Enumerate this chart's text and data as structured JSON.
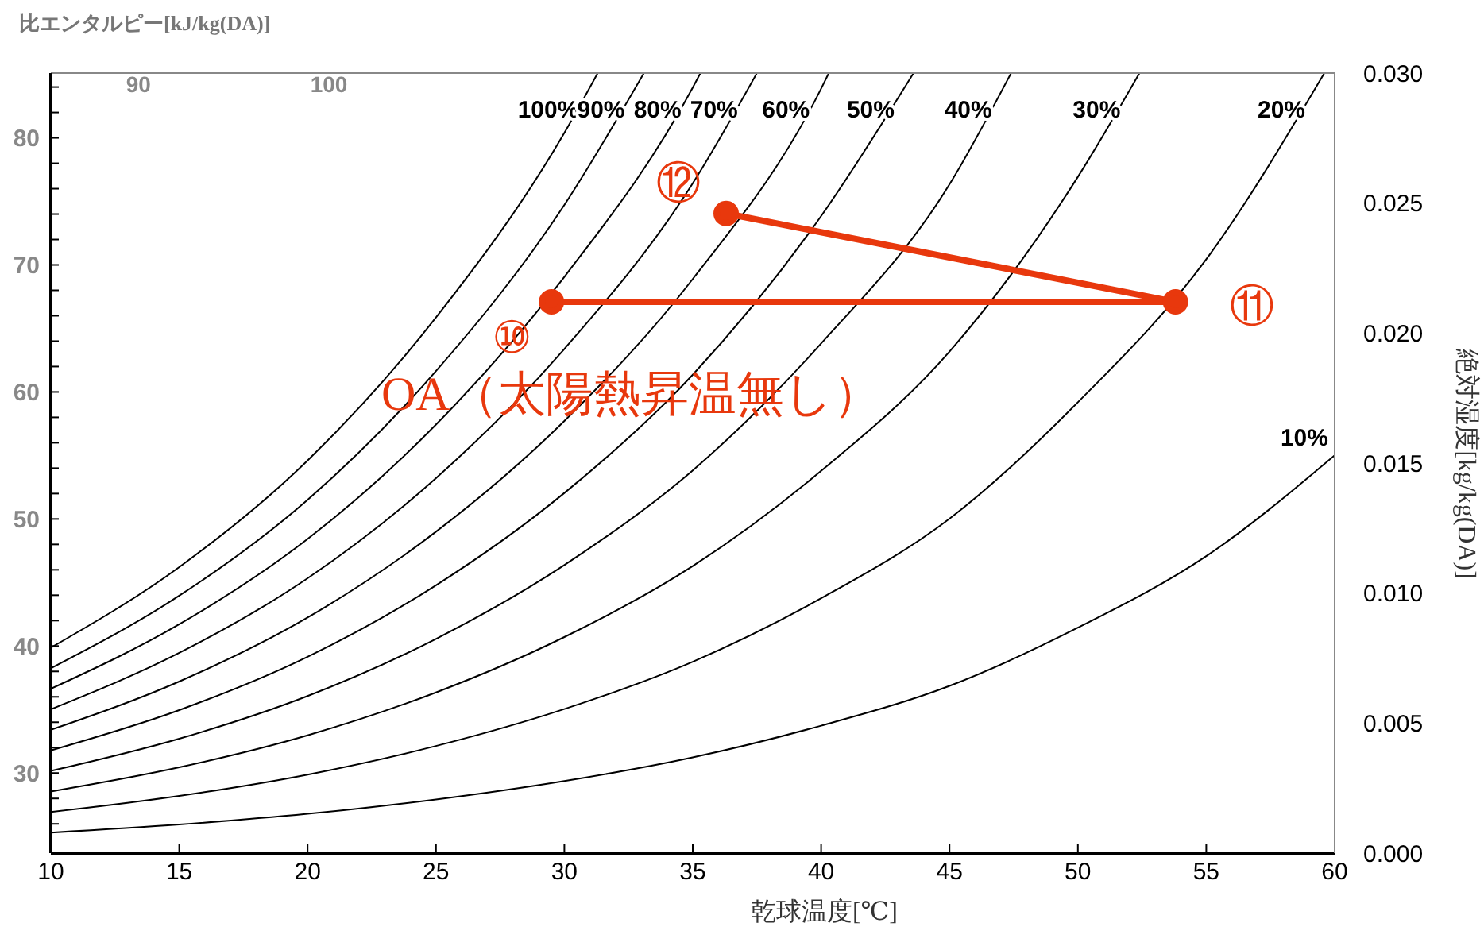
{
  "chart_data": {
    "type": "line",
    "xlabel": "乾球温度[℃]",
    "ylabel": "比エンタルピー[kJ/kg(DA)]",
    "y2label": "絶対湿度[kg/kg(DA)]",
    "xlim": [
      10,
      60
    ],
    "xticks": [
      10,
      15,
      20,
      25,
      30,
      35,
      40,
      45,
      50,
      55,
      60
    ],
    "x2lim": [
      85.4,
      152.8
    ],
    "x2ticks": [
      90,
      100
    ],
    "ylim": [
      23.7,
      85.1
    ],
    "yticks": [
      {
        "value": 26,
        "label": null
      },
      {
        "value": 28,
        "label": null
      },
      30,
      {
        "value": 32,
        "label": null
      },
      {
        "value": 34,
        "label": null
      },
      {
        "value": 36,
        "label": null
      },
      {
        "value": 38,
        "label": null
      },
      40,
      {
        "value": 42,
        "label": null
      },
      {
        "value": 44,
        "label": null
      },
      {
        "value": 46,
        "label": null
      },
      {
        "value": 48,
        "label": null
      },
      50,
      {
        "value": 52,
        "label": null
      },
      {
        "value": 54,
        "label": null
      },
      {
        "value": 56,
        "label": null
      },
      {
        "value": 58,
        "label": null
      },
      60,
      {
        "value": 62,
        "label": null
      },
      {
        "value": 64,
        "label": null
      },
      {
        "value": 66,
        "label": null
      },
      {
        "value": 68,
        "label": null
      },
      70,
      {
        "value": 72,
        "label": null
      },
      {
        "value": 74,
        "label": null
      },
      {
        "value": 76,
        "label": null
      },
      {
        "value": 78,
        "label": null
      },
      80,
      {
        "value": 82,
        "label": null
      },
      {
        "value": 84,
        "label": null
      }
    ],
    "y2lim": [
      0,
      0.03
    ],
    "y2ticks": [
      {
        "value": 0,
        "label": "0.000"
      },
      {
        "value": 0.005,
        "label": "0.005"
      },
      {
        "value": 0.01,
        "label": "0.010"
      },
      {
        "value": 0.015,
        "label": "0.015"
      },
      {
        "value": 0.02,
        "label": "0.020"
      },
      {
        "value": 0.025,
        "label": "0.025"
      },
      {
        "value": 0.03,
        "label": "0.030"
      }
    ],
    "series": [
      {
        "name": "100%",
        "color": "#000000",
        "axis": "y2",
        "marker": "none",
        "x": [
          10,
          15,
          20,
          25,
          30,
          31.3
        ],
        "values": [
          0.0079,
          0.011,
          0.0151,
          0.0206,
          0.0277,
          0.03
        ]
      },
      {
        "name": "90%",
        "color": "#000000",
        "axis": "y2",
        "marker": "none",
        "x": [
          10,
          15,
          20,
          25,
          30,
          33.1
        ],
        "values": [
          0.00711,
          0.0099,
          0.01359,
          0.01854,
          0.02493,
          0.03
        ]
      },
      {
        "name": "80%",
        "color": "#000000",
        "axis": "y2",
        "marker": "none",
        "x": [
          10,
          15,
          20,
          25,
          30,
          35,
          35.3
        ],
        "values": [
          0.00632,
          0.0088,
          0.01208,
          0.01648,
          0.02216,
          0.02944,
          0.03
        ]
      },
      {
        "name": "70%",
        "color": "#000000",
        "axis": "y2",
        "marker": "none",
        "x": [
          10,
          15,
          20,
          25,
          30,
          35,
          37.5
        ],
        "values": [
          0.00553,
          0.0077,
          0.01057,
          0.01442,
          0.01939,
          0.02576,
          0.03
        ]
      },
      {
        "name": "60%",
        "color": "#000000",
        "axis": "y2",
        "marker": "none",
        "x": [
          10,
          15,
          20,
          25,
          30,
          35,
          40,
          40.3
        ],
        "values": [
          0.00474,
          0.0066,
          0.00906,
          0.01236,
          0.01662,
          0.02208,
          0.0294,
          0.03
        ]
      },
      {
        "name": "50%",
        "color": "#000000",
        "axis": "y2",
        "marker": "none",
        "x": [
          10,
          15,
          20,
          25,
          30,
          35,
          40,
          43.6
        ],
        "values": [
          0.00395,
          0.0055,
          0.00755,
          0.0103,
          0.01385,
          0.0184,
          0.0245,
          0.03
        ]
      },
      {
        "name": "40%",
        "color": "#000000",
        "axis": "y2",
        "marker": "none",
        "x": [
          10,
          15,
          20,
          25,
          30,
          35,
          40,
          45,
          47.4
        ],
        "values": [
          0.00316,
          0.0044,
          0.00604,
          0.00824,
          0.01108,
          0.01472,
          0.0196,
          0.02572,
          0.03
        ]
      },
      {
        "name": "30%",
        "color": "#000000",
        "axis": "y2",
        "marker": "none",
        "x": [
          10,
          15,
          20,
          25,
          30,
          35,
          40,
          45,
          50,
          52.4
        ],
        "values": [
          0.00237,
          0.0033,
          0.00453,
          0.00618,
          0.00831,
          0.01104,
          0.0147,
          0.01929,
          0.02601,
          0.03
        ]
      },
      {
        "name": "20%",
        "color": "#000000",
        "axis": "y2",
        "marker": "none",
        "x": [
          10,
          15,
          20,
          25,
          30,
          35,
          40,
          45,
          50,
          55,
          59.6
        ],
        "values": [
          0.00158,
          0.0022,
          0.00302,
          0.00412,
          0.00554,
          0.00736,
          0.0098,
          0.01286,
          0.01734,
          0.02284,
          0.03
        ]
      },
      {
        "name": "10%",
        "color": "#000000",
        "axis": "y2",
        "marker": "none",
        "x": [
          10,
          15,
          20,
          25,
          30,
          35,
          40,
          45,
          50,
          55,
          60
        ],
        "values": [
          0.00079,
          0.0011,
          0.00151,
          0.00206,
          0.00277,
          0.00368,
          0.0049,
          0.00643,
          0.00867,
          0.01142,
          0.0153
        ]
      },
      {
        "name": "OA（太陽熱昇温無し）",
        "color": "#e8380d",
        "axis": "y2",
        "marker": "circle",
        "x": [
          29.5,
          53.8,
          36.3
        ],
        "values": [
          0.0212,
          0.0212,
          0.0246
        ]
      }
    ],
    "annotations": [
      "⑩",
      "⑪",
      "⑫"
    ]
  }
}
